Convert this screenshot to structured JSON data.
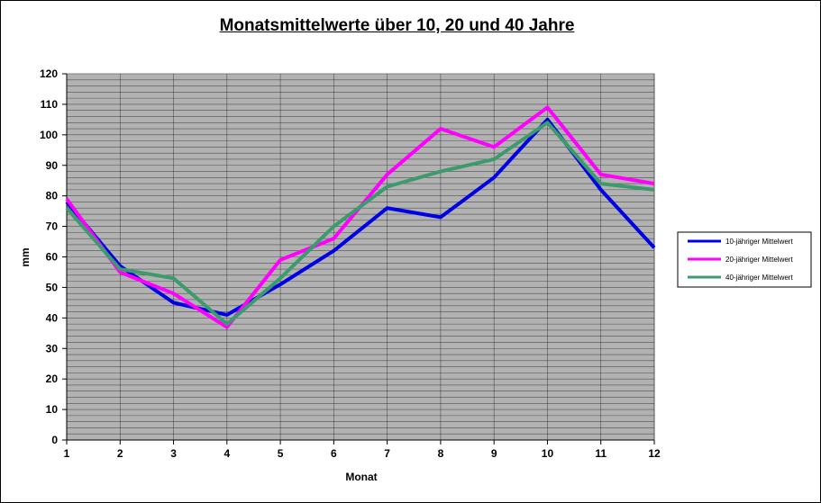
{
  "chart_data": {
    "type": "line",
    "title": "Monatsmittelwerte über 10, 20 und 40 Jahre",
    "xlabel": "Monat",
    "ylabel": "mm",
    "x": [
      1,
      2,
      3,
      4,
      5,
      6,
      7,
      8,
      9,
      10,
      11,
      12
    ],
    "ylim": [
      0,
      120
    ],
    "yticks": [
      0,
      10,
      20,
      30,
      40,
      50,
      60,
      70,
      80,
      90,
      100,
      110,
      120
    ],
    "grid": true,
    "legend_position": "right",
    "background_color": "#b2b2b2",
    "series": [
      {
        "name": "10-jähriger Mittelwert",
        "color": "#0000e6",
        "values": [
          78,
          57,
          45,
          41,
          51,
          62,
          76,
          73,
          86,
          105,
          82,
          63
        ]
      },
      {
        "name": "20-jähriger Mittelwert",
        "color": "#ff00ff",
        "values": [
          79,
          55,
          48,
          37,
          59,
          66,
          87,
          102,
          96,
          109,
          87,
          84
        ]
      },
      {
        "name": "40-jähriger Mittelwert",
        "color": "#3b9b6c",
        "values": [
          76,
          56,
          53,
          38,
          53,
          70,
          83,
          88,
          92,
          104,
          84,
          82
        ]
      }
    ]
  }
}
